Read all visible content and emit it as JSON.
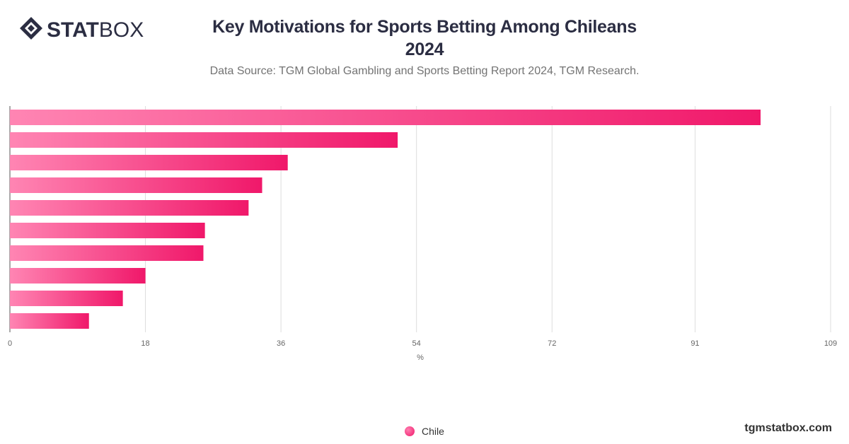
{
  "brand": {
    "logo_text_bold": "STAT",
    "logo_text_light": "BOX",
    "site": "tgmstatbox.com"
  },
  "header": {
    "title_line1": "Key Motivations for Sports Betting Among Chileans",
    "title_line2": "2024",
    "subtitle": "Data Source: TGM Global Gambling and Sports Betting Report 2024, TGM Research."
  },
  "colors": {
    "bar_start": "#ff85b3",
    "bar_end": "#f0186a",
    "grid": "#dddddd",
    "title": "#2b2d42"
  },
  "chart_data": {
    "type": "bar",
    "orientation": "horizontal",
    "categories": [
      "",
      "",
      "",
      "",
      "",
      "",
      "",
      "",
      "",
      ""
    ],
    "series": [
      {
        "name": "Chile",
        "values": [
          99.7,
          51.5,
          36.9,
          33.5,
          31.7,
          25.9,
          25.7,
          18.0,
          15.0,
          10.5
        ]
      }
    ],
    "xlabel": "%",
    "ylabel": "",
    "xlim": [
      0,
      109
    ],
    "x_ticks": [
      "0",
      "18",
      "36",
      "54",
      "72",
      "91",
      "109"
    ],
    "x_tick_values": [
      0,
      18,
      36,
      54,
      72,
      91,
      109
    ],
    "grid": true,
    "legend": "bottom-center"
  }
}
